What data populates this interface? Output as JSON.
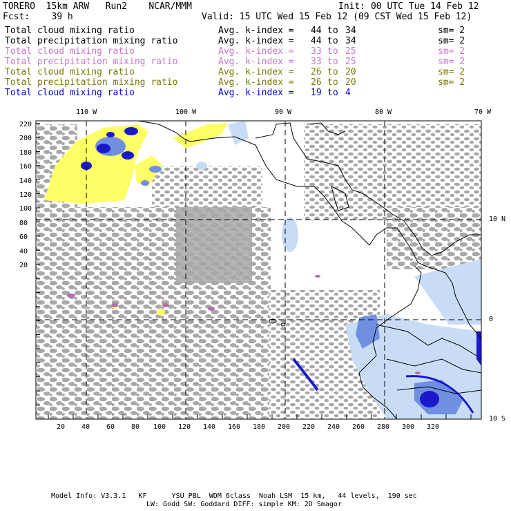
{
  "header": {
    "model_title": "TORERO  15km ARW   Run2    NCAR/MMM",
    "init": "Init: 00 UTC Tue 14 Feb 12",
    "fcst": "Fcst:    39 h",
    "valid": "Valid: 15 UTC Wed 15 Feb 12 (09 CST Wed 15 Feb 12)"
  },
  "legend": [
    {
      "field": "Total cloud mixing ratio",
      "kindex": "Avg. k-index = ",
      "from": "44",
      "to": "to",
      "end": "34",
      "sm": "sm= 2",
      "color": "#000000"
    },
    {
      "field": "Total precipitation mixing ratio",
      "kindex": "Avg. k-index = ",
      "from": "44",
      "to": "to",
      "end": "34",
      "sm": "sm= 2",
      "color": "#000000"
    },
    {
      "field": "Total cloud mixing ratio",
      "kindex": "Avg. k-index = ",
      "from": "33",
      "to": "to",
      "end": "25",
      "sm": "sm= 2",
      "color": "#c678c6"
    },
    {
      "field": "Total precipitation mixing ratio",
      "kindex": "Avg. k-index = ",
      "from": "33",
      "to": "to",
      "end": "25",
      "sm": "sm= 2",
      "color": "#c678c6"
    },
    {
      "field": "Total cloud mixing ratio",
      "kindex": "Avg. k-index = ",
      "from": "26",
      "to": "to",
      "end": "20",
      "sm": "sm= 2",
      "color": "#7a7a00"
    },
    {
      "field": "Total precipitation mixing ratio",
      "kindex": "Avg. k-index = ",
      "from": "26",
      "to": "to",
      "end": "20",
      "sm": "sm= 2",
      "color": "#7a7a00"
    },
    {
      "field": "Total cloud mixing ratio",
      "kindex": "Avg. k-index = ",
      "from": "19",
      "to": "to",
      "end": "4",
      "sm": "",
      "color": "#0000cc"
    }
  ],
  "axes": {
    "top_lon": [
      "110 W",
      "100 W",
      "90 W",
      "80 W",
      "70 W"
    ],
    "right_lat": [
      "10 N",
      "0",
      "10 S"
    ],
    "left_y": [
      "220",
      "200",
      "180",
      "160",
      "140",
      "120",
      "100",
      "80",
      "60",
      "40",
      "20"
    ],
    "bottom_x": [
      "20",
      "40",
      "60",
      "80",
      "100",
      "120",
      "140",
      "160",
      "180",
      "200",
      "220",
      "240",
      "260",
      "280",
      "300",
      "320"
    ]
  },
  "footer": {
    "line1": "Model Info: V3.3.1   KF      YSU PBL  WDM 6class  Noah LSM  15 km,   44 levels,  190 sec",
    "line2": "LW: Godd SW: Goddard DIFF: simple KM: 2D Smagor"
  },
  "colors": {
    "cloud_gray": "#a8a8a8",
    "precip_yellow": "#ffff66",
    "precip_blue": "#1a1acc",
    "light_blue": "#c8dcf5",
    "mid_blue": "#6f8fe0",
    "purple": "#b070b0"
  }
}
